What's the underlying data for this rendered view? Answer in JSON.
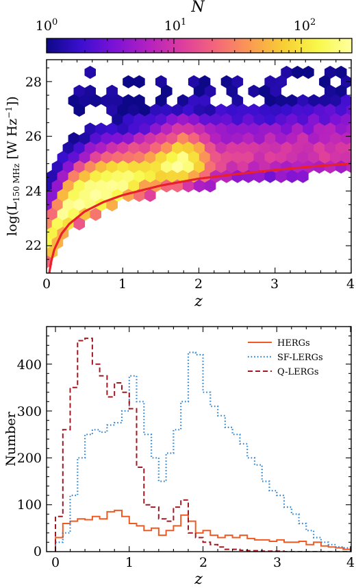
{
  "chart_data": [
    {
      "type": "heatmap",
      "subtype": "hexbin",
      "xlabel": "z",
      "ylabel": "log(L150 MHz [W Hz−1])",
      "xlim": [
        0,
        4
      ],
      "ylim": [
        21,
        28.8
      ],
      "xticks": [
        0,
        1,
        2,
        3,
        4
      ],
      "yticks": [
        22,
        24,
        26,
        28
      ],
      "colorbar": {
        "label": "N",
        "scale": "log",
        "range": [
          1,
          250
        ],
        "tick_labels": [
          {
            "base": "10",
            "exp": "0",
            "value": 1
          },
          {
            "base": "10",
            "exp": "1",
            "value": 10
          },
          {
            "base": "10",
            "exp": "2",
            "value": 100
          }
        ],
        "colormap": [
          "#0d0887",
          "#3b0fd0",
          "#7c12d6",
          "#b321c0",
          "#dd3d9e",
          "#f4677a",
          "#fb9a52",
          "#f7cf34",
          "#f8f84a",
          "#ffffa0"
        ]
      },
      "overlay_curve": {
        "color": "#e8202a",
        "x": [
          0.02,
          0.05,
          0.1,
          0.2,
          0.3,
          0.5,
          0.75,
          1.0,
          1.5,
          2.0,
          2.5,
          3.0,
          3.5,
          4.0
        ],
        "y": [
          20.6,
          21.3,
          21.85,
          22.45,
          22.8,
          23.25,
          23.6,
          23.85,
          24.2,
          24.45,
          24.62,
          24.77,
          24.9,
          25.0
        ]
      },
      "density_ridge": {
        "x": [
          0.05,
          0.2,
          0.4,
          0.6,
          0.8,
          1.0,
          1.2,
          1.5,
          1.8,
          2.1,
          2.5,
          3.0,
          3.5,
          3.95
        ],
        "y": [
          22.0,
          23.0,
          23.55,
          23.85,
          24.05,
          24.25,
          24.45,
          24.75,
          24.95,
          25.0,
          25.1,
          25.25,
          25.35,
          25.45
        ]
      }
    },
    {
      "type": "line",
      "subtype": "step-histogram",
      "xlabel": "z",
      "ylabel": "Number",
      "xlim": [
        0,
        4
      ],
      "ylim": [
        0,
        480
      ],
      "xticks": [
        0,
        1,
        2,
        3,
        4
      ],
      "yticks": [
        0,
        100,
        200,
        300,
        400
      ],
      "legend_position": "top-right",
      "bin_width": 0.1,
      "x": [
        0.0,
        0.1,
        0.2,
        0.3,
        0.4,
        0.5,
        0.6,
        0.7,
        0.8,
        0.9,
        1.0,
        1.1,
        1.2,
        1.3,
        1.4,
        1.5,
        1.6,
        1.7,
        1.8,
        1.9,
        2.0,
        2.1,
        2.2,
        2.3,
        2.4,
        2.5,
        2.6,
        2.7,
        2.8,
        2.9,
        3.0,
        3.1,
        3.2,
        3.3,
        3.4,
        3.5,
        3.6,
        3.7,
        3.8,
        3.9
      ],
      "series": [
        {
          "name": "HERGs",
          "color": "#f05a22",
          "dash": "solid",
          "values": [
            30,
            60,
            65,
            70,
            68,
            75,
            70,
            85,
            88,
            75,
            60,
            55,
            45,
            50,
            35,
            45,
            55,
            78,
            65,
            40,
            45,
            35,
            30,
            35,
            30,
            35,
            28,
            25,
            25,
            22,
            25,
            20,
            20,
            22,
            15,
            20,
            12,
            10,
            8,
            5
          ]
        },
        {
          "name": "SF-LERGs",
          "color": "#2b83d0",
          "dash": "dotted",
          "values": [
            20,
            40,
            120,
            200,
            250,
            260,
            255,
            270,
            275,
            300,
            375,
            320,
            250,
            200,
            150,
            210,
            260,
            320,
            425,
            420,
            340,
            310,
            290,
            265,
            250,
            230,
            200,
            185,
            150,
            130,
            120,
            95,
            80,
            60,
            45,
            30,
            20,
            15,
            10,
            8
          ]
        },
        {
          "name": "Q-LERGs",
          "color": "#a01820",
          "dash": "dashed",
          "values": [
            75,
            260,
            350,
            450,
            455,
            400,
            375,
            330,
            360,
            340,
            305,
            180,
            100,
            95,
            70,
            65,
            95,
            110,
            40,
            30,
            20,
            15,
            10,
            5,
            5,
            3,
            2,
            2,
            1,
            1,
            1,
            0,
            0,
            0,
            0,
            0,
            0,
            0,
            0,
            0
          ]
        }
      ]
    }
  ],
  "top_panel": {
    "colorbar_label": "N",
    "colorbar_ticks": [
      {
        "base": "10",
        "exp": "0"
      },
      {
        "base": "10",
        "exp": "1"
      },
      {
        "base": "10",
        "exp": "2"
      }
    ],
    "x_tick_labels": [
      "0",
      "1",
      "2",
      "3",
      "4"
    ],
    "y_tick_labels": [
      "22",
      "24",
      "26",
      "28"
    ],
    "xlabel": "z",
    "ylabel": {
      "prefix": "log(L",
      "sub": "150 MHz",
      "mid": " [W Hz",
      "sup": "−1",
      "suffix": "])"
    }
  },
  "bottom_panel": {
    "x_tick_labels": [
      "0",
      "1",
      "2",
      "3",
      "4"
    ],
    "y_tick_labels": [
      "0",
      "100",
      "200",
      "300",
      "400"
    ],
    "xlabel": "z",
    "ylabel": "Number",
    "legend": [
      "HERGs",
      "SF-LERGs",
      "Q-LERGs"
    ]
  }
}
